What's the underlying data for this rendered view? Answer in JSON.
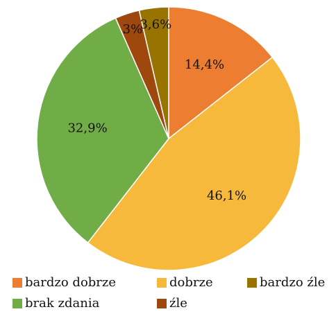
{
  "chart_data": {
    "type": "pie",
    "series": [
      {
        "name": "bardzo dobrze",
        "color": "#ed7d31",
        "values": [
          14.4
        ],
        "value_labels": [
          "14,4%"
        ]
      },
      {
        "name": "dobrze",
        "color": "#f6b93b",
        "values": [
          46.1
        ],
        "value_labels": [
          "46,1%"
        ]
      },
      {
        "name": "brak zdania",
        "color": "#70ad47",
        "values": [
          32.9
        ],
        "value_labels": [
          "32,9%"
        ]
      },
      {
        "name": "źle",
        "color": "#9e480e",
        "values": [
          3
        ],
        "value_labels": [
          "3%"
        ]
      },
      {
        "name": "bardzo źle",
        "color": "#997300",
        "values": [
          3.6
        ],
        "value_labels": [
          "3,6%"
        ]
      }
    ]
  }
}
